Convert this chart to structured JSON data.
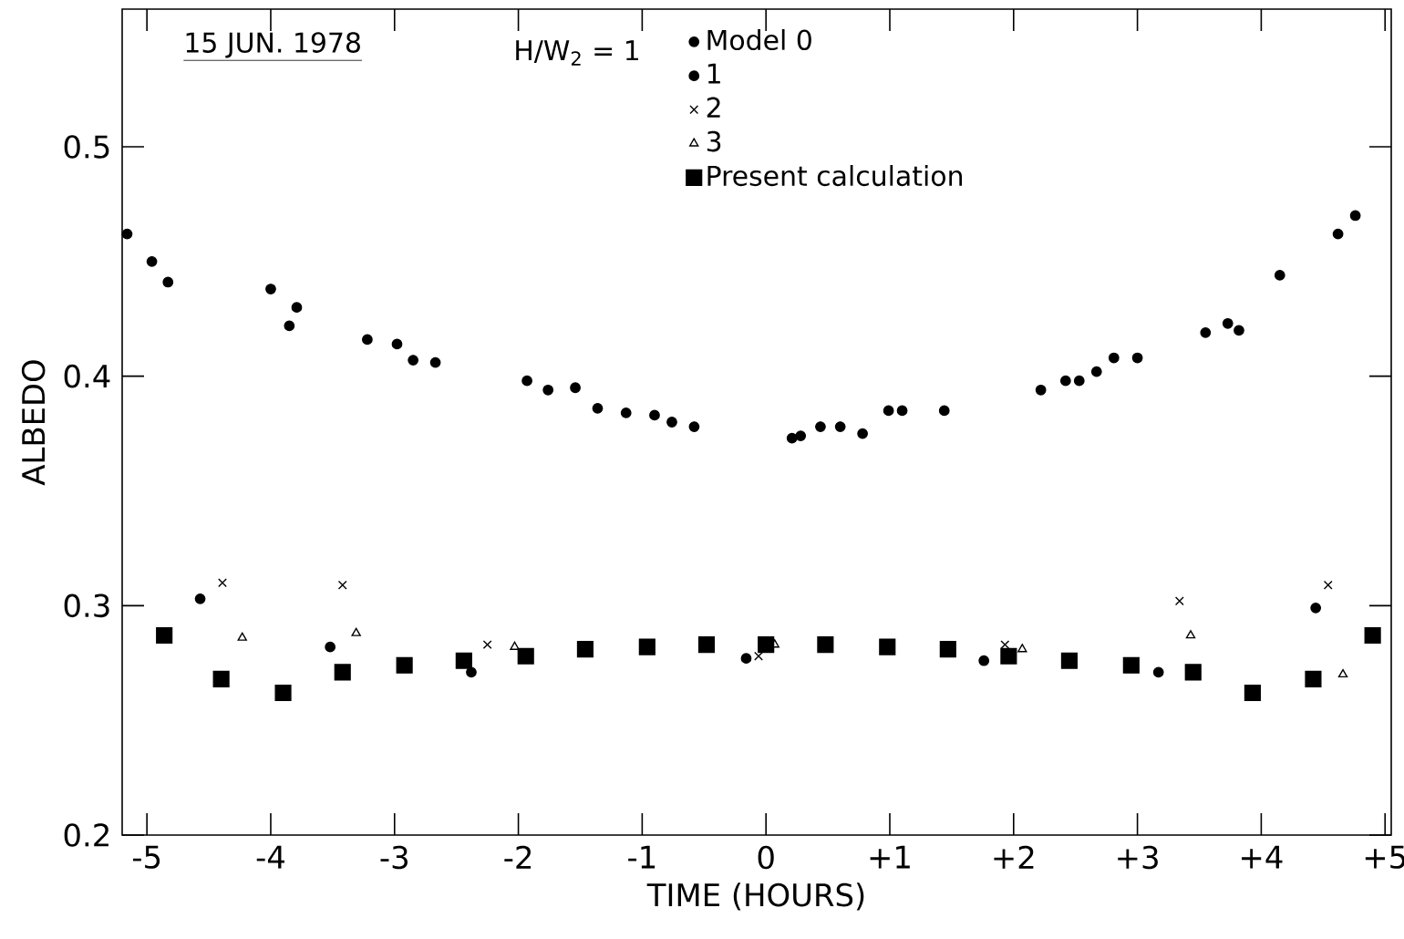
{
  "chart_data": {
    "type": "scatter",
    "xlabel": "TIME    (HOURS)",
    "ylabel": "ALBEDO",
    "annotations": [
      "15 JUN. 1978",
      "H/W$_{2}$ = 1"
    ],
    "xlim": [
      -5.2,
      5.05
    ],
    "ylim": [
      0.2,
      0.56
    ],
    "xticks": [
      -5,
      -4,
      -3,
      -2,
      -1,
      0,
      {
        "value": 1,
        "label": "+1"
      },
      {
        "value": 2,
        "label": "+2"
      },
      {
        "value": 3,
        "label": "+3"
      },
      {
        "value": 4,
        "label": "+4"
      },
      {
        "value": 5,
        "label": "+5"
      }
    ],
    "yticks": [
      0.2,
      0.3,
      0.4,
      0.5
    ],
    "grid": false,
    "legend": "top",
    "series": [
      {
        "name": "Model 0",
        "color": "#000000",
        "marker": "circle",
        "x": [
          -5.16,
          -4.96,
          -4.83,
          -4.0,
          -3.85,
          -3.79,
          -3.22,
          -2.98,
          -2.85,
          -2.67,
          -1.93,
          -1.76,
          -1.54,
          -1.36,
          -1.13,
          -0.9,
          -0.76,
          -0.58,
          0.21,
          0.28,
          0.44,
          0.6,
          0.78,
          0.99,
          1.1,
          1.44,
          2.22,
          2.42,
          2.53,
          2.67,
          2.81,
          3.0,
          3.55,
          3.73,
          3.82,
          4.15,
          4.62,
          4.76
        ],
        "values": [
          0.462,
          0.45,
          0.441,
          0.438,
          0.422,
          0.43,
          0.416,
          0.414,
          0.407,
          0.406,
          0.398,
          0.394,
          0.395,
          0.386,
          0.384,
          0.383,
          0.38,
          0.378,
          0.373,
          0.374,
          0.378,
          0.378,
          0.375,
          0.385,
          0.385,
          0.385,
          0.394,
          0.398,
          0.398,
          0.402,
          0.408,
          0.408,
          0.419,
          0.423,
          0.42,
          0.444,
          0.462,
          0.47
        ]
      },
      {
        "name": "1",
        "color": "#000000",
        "marker": "circle",
        "x": [
          -4.57,
          -3.52,
          -2.38,
          -0.16,
          1.76,
          3.17,
          4.44
        ],
        "values": [
          0.303,
          0.282,
          0.271,
          0.277,
          0.276,
          0.271,
          0.299
        ]
      },
      {
        "name": "2",
        "color": "#000000",
        "marker": "cross",
        "x": [
          -4.39,
          -3.42,
          -2.25,
          -0.06,
          1.93,
          3.34,
          4.54
        ],
        "values": [
          0.31,
          0.309,
          0.283,
          0.278,
          0.283,
          0.302,
          0.309
        ]
      },
      {
        "name": "3",
        "color": "#000000",
        "marker": "triangle",
        "x": [
          -4.23,
          -3.31,
          -2.03,
          0.07,
          2.07,
          3.43,
          4.66
        ],
        "values": [
          0.286,
          0.288,
          0.282,
          0.283,
          0.281,
          0.287,
          0.27
        ]
      },
      {
        "name": "Present calculation",
        "color": "#000000",
        "marker": "square",
        "x": [
          -4.86,
          -4.4,
          -3.9,
          -3.42,
          -2.92,
          -2.44,
          -1.94,
          -1.46,
          -0.96,
          -0.48,
          0.0,
          0.48,
          0.98,
          1.47,
          1.96,
          2.45,
          2.95,
          3.45,
          3.93,
          4.42,
          4.9
        ],
        "values": [
          0.287,
          0.268,
          0.262,
          0.271,
          0.274,
          0.276,
          0.278,
          0.281,
          0.282,
          0.283,
          0.283,
          0.283,
          0.282,
          0.281,
          0.278,
          0.276,
          0.274,
          0.271,
          0.262,
          0.268,
          0.287
        ]
      }
    ]
  }
}
